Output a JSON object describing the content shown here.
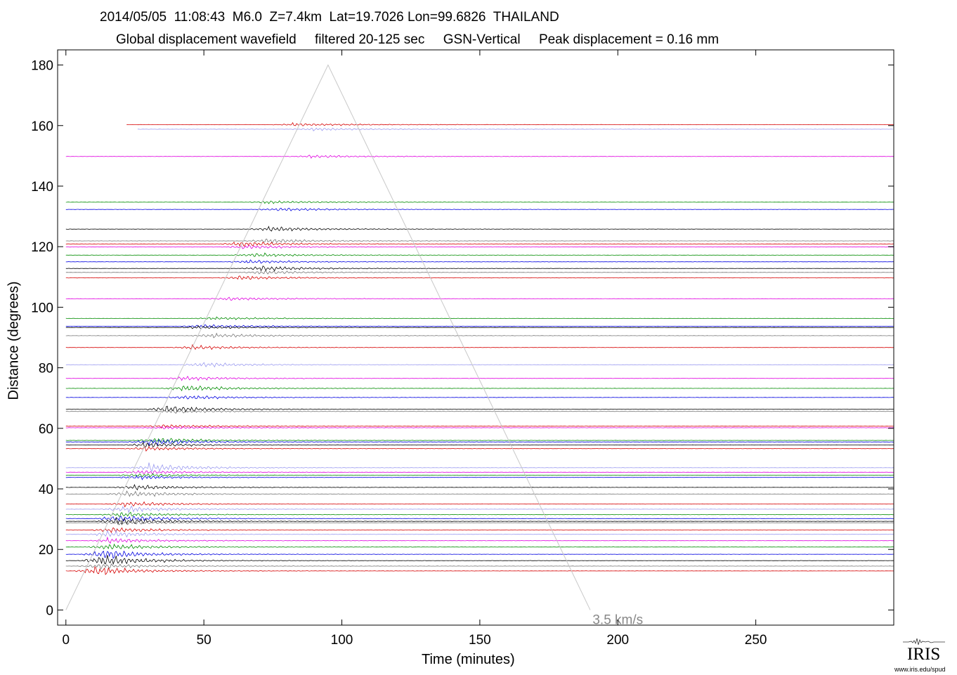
{
  "header": {
    "line1": "2014/05/05  11:08:43  M6.0  Z=7.4km  Lat=19.7026 Lon=99.6826  THAILAND",
    "line2": "Global displacement wavefield     filtered 20-125 sec     GSN-Vertical     Peak displacement = 0.16 mm"
  },
  "logo": {
    "name": "IRIS",
    "url": "www.iris.edu/spud"
  },
  "chart_data": {
    "type": "line",
    "title": "Global displacement wavefield",
    "xlabel": "Time (minutes)",
    "ylabel": "Distance (degrees)",
    "xlim": [
      -3,
      300
    ],
    "ylim": [
      -5,
      185
    ],
    "xticks": [
      0,
      50,
      100,
      150,
      200,
      250
    ],
    "yticks": [
      0,
      20,
      40,
      60,
      80,
      100,
      120,
      140,
      160,
      180
    ],
    "grid": false,
    "velocity_line": {
      "label": "3.5 km/s",
      "points": [
        [
          0,
          0
        ],
        [
          95,
          180
        ],
        [
          190,
          0
        ]
      ],
      "color": "#c8c8c8"
    },
    "colors": {
      "red": "#d60000",
      "lavender": "#9a9af0",
      "magenta": "#e000e0",
      "green": "#008c00",
      "blue": "#0000e0",
      "black": "#000000",
      "gray": "#777777"
    },
    "traces": [
      {
        "distance": 160.3,
        "color": "red",
        "start": 22,
        "end": 300,
        "arrival": 82,
        "amp": 2
      },
      {
        "distance": 158.8,
        "color": "lavender",
        "start": 26,
        "end": 300,
        "arrival": 88,
        "amp": 2
      },
      {
        "distance": 149.8,
        "color": "magenta",
        "start": 0,
        "end": 300,
        "arrival": 88,
        "amp": 2
      },
      {
        "distance": 134.7,
        "color": "green",
        "start": 0,
        "end": 300,
        "arrival": 72,
        "amp": 2
      },
      {
        "distance": 132.3,
        "color": "blue",
        "start": 0,
        "end": 300,
        "arrival": 75,
        "amp": 2.5
      },
      {
        "distance": 125.8,
        "color": "black",
        "start": 0,
        "end": 300,
        "arrival": 73,
        "amp": 4
      },
      {
        "distance": 121.9,
        "color": "gray",
        "start": 0,
        "end": 300,
        "arrival": 72,
        "amp": 3.5
      },
      {
        "distance": 120.9,
        "color": "red",
        "start": 0,
        "end": 300,
        "arrival": 62,
        "amp": 4
      },
      {
        "distance": 119.9,
        "color": "magenta",
        "start": 0,
        "end": 300,
        "arrival": 64,
        "amp": 3
      },
      {
        "distance": 117.2,
        "color": "green",
        "start": 0,
        "end": 300,
        "arrival": 67,
        "amp": 3
      },
      {
        "distance": 115.0,
        "color": "blue",
        "start": 0,
        "end": 300,
        "arrival": 65,
        "amp": 2.5
      },
      {
        "distance": 112.8,
        "color": "black",
        "start": 0,
        "end": 300,
        "arrival": 70,
        "amp": 4
      },
      {
        "distance": 111.5,
        "color": "gray",
        "start": 0,
        "end": 300,
        "arrival": 70,
        "amp": 3
      },
      {
        "distance": 109.7,
        "color": "red",
        "start": 0,
        "end": 300,
        "arrival": 62,
        "amp": 3
      },
      {
        "distance": 102.8,
        "color": "magenta",
        "start": 0,
        "end": 300,
        "arrival": 58,
        "amp": 3
      },
      {
        "distance": 96.3,
        "color": "green",
        "start": 0,
        "end": 300,
        "arrival": 52,
        "amp": 2
      },
      {
        "distance": 93.7,
        "color": "blue",
        "start": 0,
        "end": 300,
        "arrival": 48,
        "amp": 3
      },
      {
        "distance": 93.3,
        "color": "black",
        "start": 0,
        "end": 300,
        "arrival": 47,
        "amp": 2.5
      },
      {
        "distance": 90.6,
        "color": "gray",
        "start": 0,
        "end": 300,
        "arrival": 52,
        "amp": 3.5
      },
      {
        "distance": 86.7,
        "color": "red",
        "start": 0,
        "end": 300,
        "arrival": 45,
        "amp": 3
      },
      {
        "distance": 81.0,
        "color": "lavender",
        "start": 0,
        "end": 300,
        "arrival": 48,
        "amp": 4
      },
      {
        "distance": 76.5,
        "color": "magenta",
        "start": 0,
        "end": 300,
        "arrival": 42,
        "amp": 3
      },
      {
        "distance": 73.2,
        "color": "green",
        "start": 0,
        "end": 300,
        "arrival": 42,
        "amp": 5
      },
      {
        "distance": 70.2,
        "color": "blue",
        "start": 0,
        "end": 300,
        "arrival": 42,
        "amp": 3
      },
      {
        "distance": 66.3,
        "color": "black",
        "start": 0,
        "end": 300,
        "arrival": 36,
        "amp": 6
      },
      {
        "distance": 65.6,
        "color": "gray",
        "start": 0,
        "end": 300,
        "arrival": 38,
        "amp": 3
      },
      {
        "distance": 60.7,
        "color": "red",
        "start": 0,
        "end": 300,
        "arrival": 34,
        "amp": 3
      },
      {
        "distance": 60.2,
        "color": "magenta",
        "start": 0,
        "end": 300,
        "arrival": 34,
        "amp": 2
      },
      {
        "distance": 56.0,
        "color": "green",
        "start": 0,
        "end": 300,
        "arrival": 32,
        "amp": 5
      },
      {
        "distance": 55.5,
        "color": "blue",
        "start": 0,
        "end": 300,
        "arrival": 30,
        "amp": 5
      },
      {
        "distance": 54.5,
        "color": "black",
        "start": 0,
        "end": 300,
        "arrival": 28,
        "amp": 4
      },
      {
        "distance": 53.3,
        "color": "red",
        "start": 0,
        "end": 300,
        "arrival": 28,
        "amp": 3
      },
      {
        "distance": 47.0,
        "color": "lavender",
        "start": 0,
        "end": 300,
        "arrival": 30,
        "amp": 7
      },
      {
        "distance": 45.5,
        "color": "magenta",
        "start": 0,
        "end": 300,
        "arrival": 26,
        "amp": 3
      },
      {
        "distance": 44.5,
        "color": "green",
        "start": 0,
        "end": 300,
        "arrival": 25,
        "amp": 3
      },
      {
        "distance": 43.8,
        "color": "blue",
        "start": 0,
        "end": 300,
        "arrival": 25,
        "amp": 3
      },
      {
        "distance": 40.5,
        "color": "black",
        "start": 0,
        "end": 300,
        "arrival": 24,
        "amp": 4
      },
      {
        "distance": 38.3,
        "color": "gray",
        "start": 0,
        "end": 300,
        "arrival": 22,
        "amp": 5
      },
      {
        "distance": 35.0,
        "color": "red",
        "start": 0,
        "end": 300,
        "arrival": 21,
        "amp": 4
      },
      {
        "distance": 33.3,
        "color": "lavender",
        "start": 0,
        "end": 300,
        "arrival": 20,
        "amp": 5
      },
      {
        "distance": 31.5,
        "color": "green",
        "start": 0,
        "end": 300,
        "arrival": 19,
        "amp": 4
      },
      {
        "distance": 30.2,
        "color": "blue",
        "start": 0,
        "end": 300,
        "arrival": 18,
        "amp": 6
      },
      {
        "distance": 29.3,
        "color": "black",
        "start": 0,
        "end": 300,
        "arrival": 18,
        "amp": 6
      },
      {
        "distance": 28.8,
        "color": "gray",
        "start": 0,
        "end": 300,
        "arrival": 18,
        "amp": 4
      },
      {
        "distance": 26.4,
        "color": "red",
        "start": 0,
        "end": 300,
        "arrival": 16,
        "amp": 4
      },
      {
        "distance": 25.0,
        "color": "lavender",
        "start": 0,
        "end": 300,
        "arrival": 15,
        "amp": 5
      },
      {
        "distance": 22.9,
        "color": "magenta",
        "start": 0,
        "end": 300,
        "arrival": 15,
        "amp": 4
      },
      {
        "distance": 20.8,
        "color": "green",
        "start": 0,
        "end": 300,
        "arrival": 14,
        "amp": 5
      },
      {
        "distance": 18.4,
        "color": "blue",
        "start": 0,
        "end": 300,
        "arrival": 13,
        "amp": 8
      },
      {
        "distance": 16.3,
        "color": "black",
        "start": 0,
        "end": 300,
        "arrival": 12,
        "amp": 9
      },
      {
        "distance": 14.5,
        "color": "gray",
        "start": 0,
        "end": 300,
        "arrival": 11,
        "amp": 4
      },
      {
        "distance": 12.9,
        "color": "red",
        "start": 0,
        "end": 300,
        "arrival": 10,
        "amp": 7
      }
    ]
  }
}
